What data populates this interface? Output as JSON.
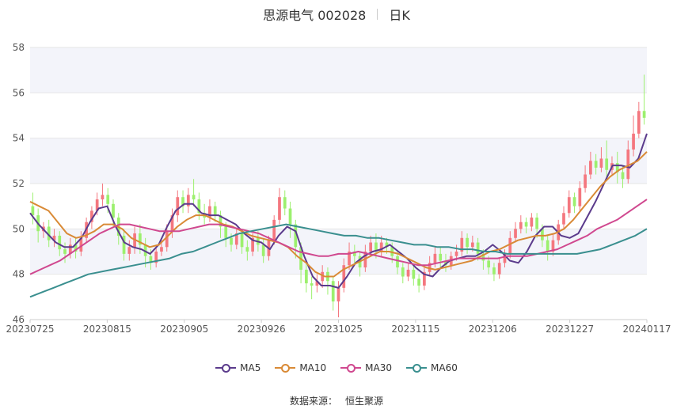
{
  "header": {
    "title": "思源电气 002028",
    "period": "日K"
  },
  "source": {
    "label": "数据来源：",
    "name": "恒生聚源"
  },
  "colors": {
    "up": "#f4777f",
    "down": "#9cf06e",
    "MA5": "#5b3b8c",
    "MA10": "#d98a36",
    "MA30": "#d0488f",
    "MA60": "#3a8f8f",
    "grid": "#e6e6e6",
    "band": "#f3f4fa"
  },
  "chart_data": {
    "type": "candlestick",
    "ylim": [
      46,
      58
    ],
    "y_ticks": [
      46,
      48,
      50,
      52,
      54,
      56,
      58
    ],
    "x_tick_labels": [
      "20230725",
      "20230815",
      "20230905",
      "20230926",
      "20231025",
      "20231115",
      "20231206",
      "20231227",
      "20240117"
    ],
    "legend": [
      "MA5",
      "MA10",
      "MA30",
      "MA60"
    ],
    "legend_position": "bottom",
    "grid": true,
    "candles": [
      [
        51.0,
        50.6,
        51.6,
        50.2
      ],
      [
        50.6,
        49.9,
        50.9,
        49.4
      ],
      [
        49.9,
        50.1,
        50.3,
        49.6
      ],
      [
        50.1,
        49.5,
        50.4,
        49.2
      ],
      [
        49.5,
        49.7,
        50.0,
        49.2
      ],
      [
        49.7,
        49.1,
        49.9,
        48.8
      ],
      [
        49.1,
        48.9,
        49.4,
        48.5
      ],
      [
        48.9,
        49.3,
        49.6,
        48.7
      ],
      [
        49.3,
        49.0,
        49.6,
        48.7
      ],
      [
        49.0,
        49.6,
        49.9,
        48.8
      ],
      [
        49.6,
        50.3,
        50.5,
        49.4
      ],
      [
        50.3,
        50.8,
        51.0,
        50.0
      ],
      [
        50.8,
        51.3,
        51.6,
        50.6
      ],
      [
        51.3,
        51.5,
        52.0,
        51.0
      ],
      [
        51.5,
        51.1,
        51.8,
        50.7
      ],
      [
        51.1,
        50.5,
        51.3,
        50.1
      ],
      [
        50.5,
        49.7,
        50.7,
        49.3
      ],
      [
        49.7,
        48.9,
        50.0,
        48.6
      ],
      [
        48.9,
        49.2,
        49.5,
        48.6
      ],
      [
        49.2,
        49.8,
        50.1,
        48.9
      ],
      [
        49.8,
        49.3,
        50.2,
        48.9
      ],
      [
        49.3,
        48.8,
        49.6,
        48.3
      ],
      [
        48.8,
        48.5,
        49.1,
        48.2
      ],
      [
        48.5,
        49.0,
        49.3,
        48.3
      ],
      [
        49.0,
        49.2,
        49.5,
        48.8
      ],
      [
        49.2,
        49.9,
        50.2,
        49.0
      ],
      [
        49.9,
        50.6,
        50.9,
        49.6
      ],
      [
        50.6,
        51.4,
        51.7,
        50.3
      ],
      [
        51.4,
        51.0,
        51.7,
        50.7
      ],
      [
        51.0,
        51.5,
        51.8,
        50.7
      ],
      [
        51.5,
        51.3,
        52.2,
        51.0
      ],
      [
        51.3,
        50.7,
        51.6,
        50.4
      ],
      [
        50.7,
        50.5,
        51.1,
        50.2
      ],
      [
        50.5,
        51.0,
        51.3,
        50.3
      ],
      [
        51.0,
        50.6,
        51.2,
        50.3
      ],
      [
        50.6,
        50.1,
        50.8,
        49.6
      ],
      [
        50.1,
        49.6,
        50.3,
        49.2
      ],
      [
        49.6,
        49.3,
        49.8,
        49.0
      ],
      [
        49.3,
        49.8,
        50.0,
        49.1
      ],
      [
        49.8,
        49.2,
        50.0,
        48.9
      ],
      [
        49.2,
        49.0,
        49.5,
        48.6
      ],
      [
        49.0,
        49.6,
        49.8,
        48.8
      ],
      [
        49.6,
        49.3,
        49.9,
        49.0
      ],
      [
        49.3,
        48.8,
        49.6,
        48.5
      ],
      [
        48.8,
        49.5,
        49.7,
        48.6
      ],
      [
        49.5,
        50.4,
        50.6,
        49.3
      ],
      [
        50.4,
        51.4,
        51.8,
        50.2
      ],
      [
        51.4,
        50.9,
        51.7,
        50.6
      ],
      [
        50.9,
        50.2,
        51.2,
        49.6
      ],
      [
        50.2,
        49.2,
        50.4,
        48.7
      ],
      [
        49.2,
        48.2,
        49.4,
        47.6
      ],
      [
        48.2,
        47.6,
        48.5,
        47.2
      ],
      [
        47.6,
        47.5,
        47.9,
        46.9
      ],
      [
        47.5,
        47.7,
        48.0,
        47.2
      ],
      [
        47.7,
        48.1,
        48.4,
        47.4
      ],
      [
        48.1,
        47.7,
        48.3,
        47.1
      ],
      [
        47.7,
        46.8,
        47.9,
        46.4
      ],
      [
        46.8,
        47.4,
        47.7,
        46.1
      ],
      [
        47.4,
        48.4,
        48.7,
        47.2
      ],
      [
        48.4,
        49.0,
        49.4,
        48.2
      ],
      [
        49.0,
        48.8,
        49.3,
        48.4
      ],
      [
        48.8,
        48.3,
        49.0,
        47.9
      ],
      [
        48.3,
        49.0,
        49.3,
        48.1
      ],
      [
        49.0,
        49.4,
        49.7,
        48.8
      ],
      [
        49.4,
        49.0,
        49.8,
        48.7
      ],
      [
        49.0,
        49.4,
        49.7,
        48.8
      ],
      [
        49.4,
        49.2,
        49.6,
        48.9
      ],
      [
        49.2,
        48.8,
        49.4,
        48.5
      ],
      [
        48.8,
        48.3,
        49.0,
        48.0
      ],
      [
        48.3,
        47.9,
        48.5,
        47.6
      ],
      [
        47.9,
        48.2,
        48.5,
        47.7
      ],
      [
        48.2,
        47.8,
        48.4,
        47.5
      ],
      [
        47.8,
        47.5,
        48.0,
        47.2
      ],
      [
        47.5,
        48.1,
        48.3,
        47.3
      ],
      [
        48.1,
        48.5,
        48.8,
        47.9
      ],
      [
        48.5,
        48.9,
        49.2,
        48.3
      ],
      [
        48.9,
        48.6,
        49.2,
        48.3
      ],
      [
        48.6,
        48.4,
        48.9,
        48.1
      ],
      [
        48.4,
        48.8,
        49.0,
        48.2
      ],
      [
        48.8,
        49.0,
        49.3,
        48.6
      ],
      [
        49.0,
        49.6,
        49.9,
        48.8
      ],
      [
        49.6,
        49.2,
        49.8,
        48.9
      ],
      [
        49.2,
        49.4,
        49.7,
        49.0
      ],
      [
        49.4,
        48.9,
        49.6,
        48.6
      ],
      [
        48.9,
        48.6,
        49.1,
        48.2
      ],
      [
        48.6,
        48.3,
        48.8,
        48.0
      ],
      [
        48.3,
        48.0,
        48.5,
        47.7
      ],
      [
        48.0,
        48.5,
        48.7,
        47.8
      ],
      [
        48.5,
        48.9,
        49.1,
        48.3
      ],
      [
        48.9,
        49.6,
        49.9,
        48.7
      ],
      [
        49.6,
        50.0,
        50.3,
        49.4
      ],
      [
        50.0,
        50.3,
        50.6,
        49.8
      ],
      [
        50.3,
        50.1,
        50.5,
        49.8
      ],
      [
        50.1,
        50.5,
        50.7,
        49.9
      ],
      [
        50.5,
        50.0,
        50.7,
        49.6
      ],
      [
        50.0,
        49.5,
        50.2,
        49.2
      ],
      [
        49.5,
        49.0,
        49.7,
        48.6
      ],
      [
        49.0,
        49.5,
        49.8,
        48.8
      ],
      [
        49.5,
        50.2,
        50.4,
        49.3
      ],
      [
        50.2,
        50.7,
        51.0,
        50.0
      ],
      [
        50.7,
        51.4,
        51.7,
        50.5
      ],
      [
        51.4,
        51.0,
        51.6,
        50.7
      ],
      [
        51.0,
        51.8,
        52.1,
        50.8
      ],
      [
        51.8,
        52.4,
        52.8,
        51.6
      ],
      [
        52.4,
        53.0,
        53.4,
        52.2
      ],
      [
        53.0,
        52.7,
        53.3,
        52.4
      ],
      [
        52.7,
        53.1,
        53.6,
        52.5
      ],
      [
        53.1,
        52.6,
        53.9,
        52.3
      ],
      [
        52.6,
        52.9,
        53.2,
        52.4
      ],
      [
        52.9,
        52.5,
        53.4,
        52.0
      ],
      [
        52.5,
        52.2,
        52.8,
        51.8
      ],
      [
        52.2,
        53.5,
        53.9,
        52.0
      ],
      [
        53.5,
        54.2,
        55.0,
        53.2
      ],
      [
        54.2,
        55.2,
        55.6,
        54.0
      ],
      [
        55.2,
        54.9,
        56.8,
        54.6
      ]
    ],
    "series": [
      {
        "name": "MA5",
        "values": [
          50.7,
          50.2,
          49.8,
          49.4,
          49.2,
          49.2,
          49.6,
          50.3,
          50.9,
          51.0,
          50.1,
          49.4,
          49.2,
          49.1,
          48.9,
          49.3,
          50.1,
          50.8,
          51.1,
          51.1,
          50.7,
          50.6,
          50.6,
          50.4,
          50.2,
          49.8,
          49.5,
          49.4,
          49.1,
          49.7,
          50.1,
          49.9,
          48.8,
          47.9,
          47.5,
          47.5,
          47.4,
          47.9,
          48.5,
          48.8,
          49.0,
          49.1,
          49.3,
          49.0,
          48.7,
          48.3,
          48.0,
          47.9,
          48.3,
          48.6,
          48.7,
          48.8,
          48.8,
          49.0,
          49.3,
          49.0,
          48.6,
          48.5,
          49.0,
          49.7,
          50.1,
          50.1,
          49.7,
          49.6,
          49.8,
          50.5,
          51.2,
          52.0,
          52.8,
          52.8,
          52.7,
          53.1,
          54.2
        ]
      },
      {
        "name": "MA10",
        "values": [
          51.2,
          51.0,
          50.8,
          50.3,
          49.8,
          49.6,
          49.7,
          49.9,
          50.2,
          50.2,
          50.0,
          49.6,
          49.4,
          49.2,
          49.3,
          49.7,
          50.1,
          50.4,
          50.6,
          50.6,
          50.4,
          50.2,
          50.1,
          49.9,
          49.7,
          49.6,
          49.5,
          49.4,
          49.2,
          48.8,
          48.5,
          48.1,
          47.9,
          47.9,
          48.2,
          48.4,
          48.6,
          48.8,
          49.0,
          49.0,
          48.9,
          48.7,
          48.5,
          48.3,
          48.2,
          48.3,
          48.4,
          48.5,
          48.6,
          48.8,
          49.0,
          49.1,
          49.3,
          49.5,
          49.6,
          49.7,
          49.7,
          49.8,
          50.0,
          50.4,
          50.9,
          51.4,
          51.9,
          52.3,
          52.6,
          52.8,
          53.0,
          53.4
        ]
      },
      {
        "name": "MA30",
        "values": [
          48.0,
          48.2,
          48.4,
          48.6,
          48.9,
          49.2,
          49.5,
          49.8,
          50.0,
          50.2,
          50.2,
          50.1,
          50.0,
          49.9,
          49.9,
          49.9,
          50.0,
          50.1,
          50.2,
          50.2,
          50.1,
          50.0,
          49.9,
          49.8,
          49.6,
          49.4,
          49.2,
          49.0,
          48.9,
          48.8,
          48.8,
          48.9,
          48.9,
          49.0,
          48.9,
          48.8,
          48.7,
          48.6,
          48.5,
          48.4,
          48.4,
          48.5,
          48.6,
          48.7,
          48.7,
          48.7,
          48.7,
          48.7,
          48.8,
          48.8,
          48.8,
          48.9,
          49.0,
          49.1,
          49.3,
          49.5,
          49.7,
          50.0,
          50.2,
          50.4,
          50.7,
          51.0,
          51.3
        ]
      },
      {
        "name": "MA60",
        "values": [
          47.0,
          47.2,
          47.4,
          47.6,
          47.8,
          48.0,
          48.1,
          48.2,
          48.3,
          48.4,
          48.5,
          48.6,
          48.7,
          48.9,
          49.0,
          49.2,
          49.4,
          49.6,
          49.8,
          49.9,
          50.0,
          50.1,
          50.2,
          50.1,
          50.0,
          49.9,
          49.8,
          49.7,
          49.7,
          49.6,
          49.6,
          49.5,
          49.4,
          49.3,
          49.3,
          49.2,
          49.2,
          49.1,
          49.1,
          49.0,
          49.0,
          48.9,
          48.9,
          48.9,
          48.9,
          48.9,
          48.9,
          48.9,
          49.0,
          49.1,
          49.3,
          49.5,
          49.7,
          50.0
        ]
      }
    ]
  }
}
